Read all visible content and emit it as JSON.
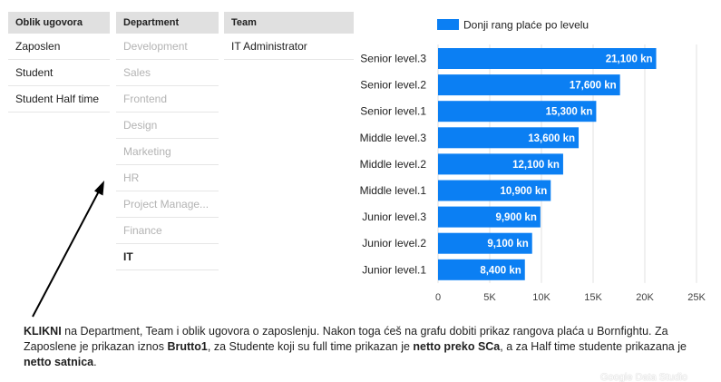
{
  "filters": {
    "oblik": {
      "header": "Oblik ugovora",
      "items": [
        {
          "label": "Zaposlen",
          "state": "normal"
        },
        {
          "label": "Student",
          "state": "normal"
        },
        {
          "label": "Student Half time",
          "state": "normal"
        }
      ]
    },
    "department": {
      "header": "Department",
      "items": [
        {
          "label": "Development",
          "state": "dim"
        },
        {
          "label": "Sales",
          "state": "dim"
        },
        {
          "label": "Frontend",
          "state": "dim"
        },
        {
          "label": "Design",
          "state": "dim"
        },
        {
          "label": "Marketing",
          "state": "dim"
        },
        {
          "label": "HR",
          "state": "dim"
        },
        {
          "label": "Project Manage...",
          "state": "dim"
        },
        {
          "label": "Finance",
          "state": "dim"
        },
        {
          "label": "IT",
          "state": "sel"
        }
      ]
    },
    "team": {
      "header": "Team",
      "items": [
        {
          "label": "IT Administrator",
          "state": "normal"
        }
      ]
    }
  },
  "chart_data": {
    "type": "bar",
    "orientation": "horizontal",
    "legend": "Donji rang plaće po levelu",
    "legend_position": "top",
    "bar_color": "#0b7ff3",
    "categories": [
      "Senior level.3",
      "Senior level.2",
      "Senior level.1",
      "Middle level.3",
      "Middle level.2",
      "Middle level.1",
      "Junior level.3",
      "Junior level.2",
      "Junior level.1"
    ],
    "values": [
      21100,
      17600,
      15300,
      13600,
      12100,
      10900,
      9900,
      9100,
      8400
    ],
    "value_labels": [
      "21,100 kn",
      "17,600 kn",
      "15,300 kn",
      "13,600 kn",
      "12,100 kn",
      "10,900 kn",
      "9,900 kn",
      "9,100 kn",
      "8,400 kn"
    ],
    "xlim": [
      0,
      25000
    ],
    "x_ticks": [
      0,
      5000,
      10000,
      15000,
      20000,
      25000
    ],
    "x_tick_labels": [
      "0",
      "5K",
      "10K",
      "15K",
      "20K",
      "25K"
    ],
    "grid": "vertical"
  },
  "note": {
    "p1_bold": "KLIKNI",
    "p1": " na Department, Team i oblik ugovora o zaposlenju. Nakon toga ćeš na grafu dobiti prikaz rangova plaća u Bornfightu. Za Zaposlene je prikazan iznos ",
    "p2_bold": "Brutto1",
    "p2": ", za Studente koji su full time prikazan je ",
    "p3_bold": "netto preko SCa",
    "p3": ", a za Half time studente prikazana je ",
    "p4_bold": "netto satnica",
    "p4": "."
  },
  "watermark": "Google Data Studio"
}
